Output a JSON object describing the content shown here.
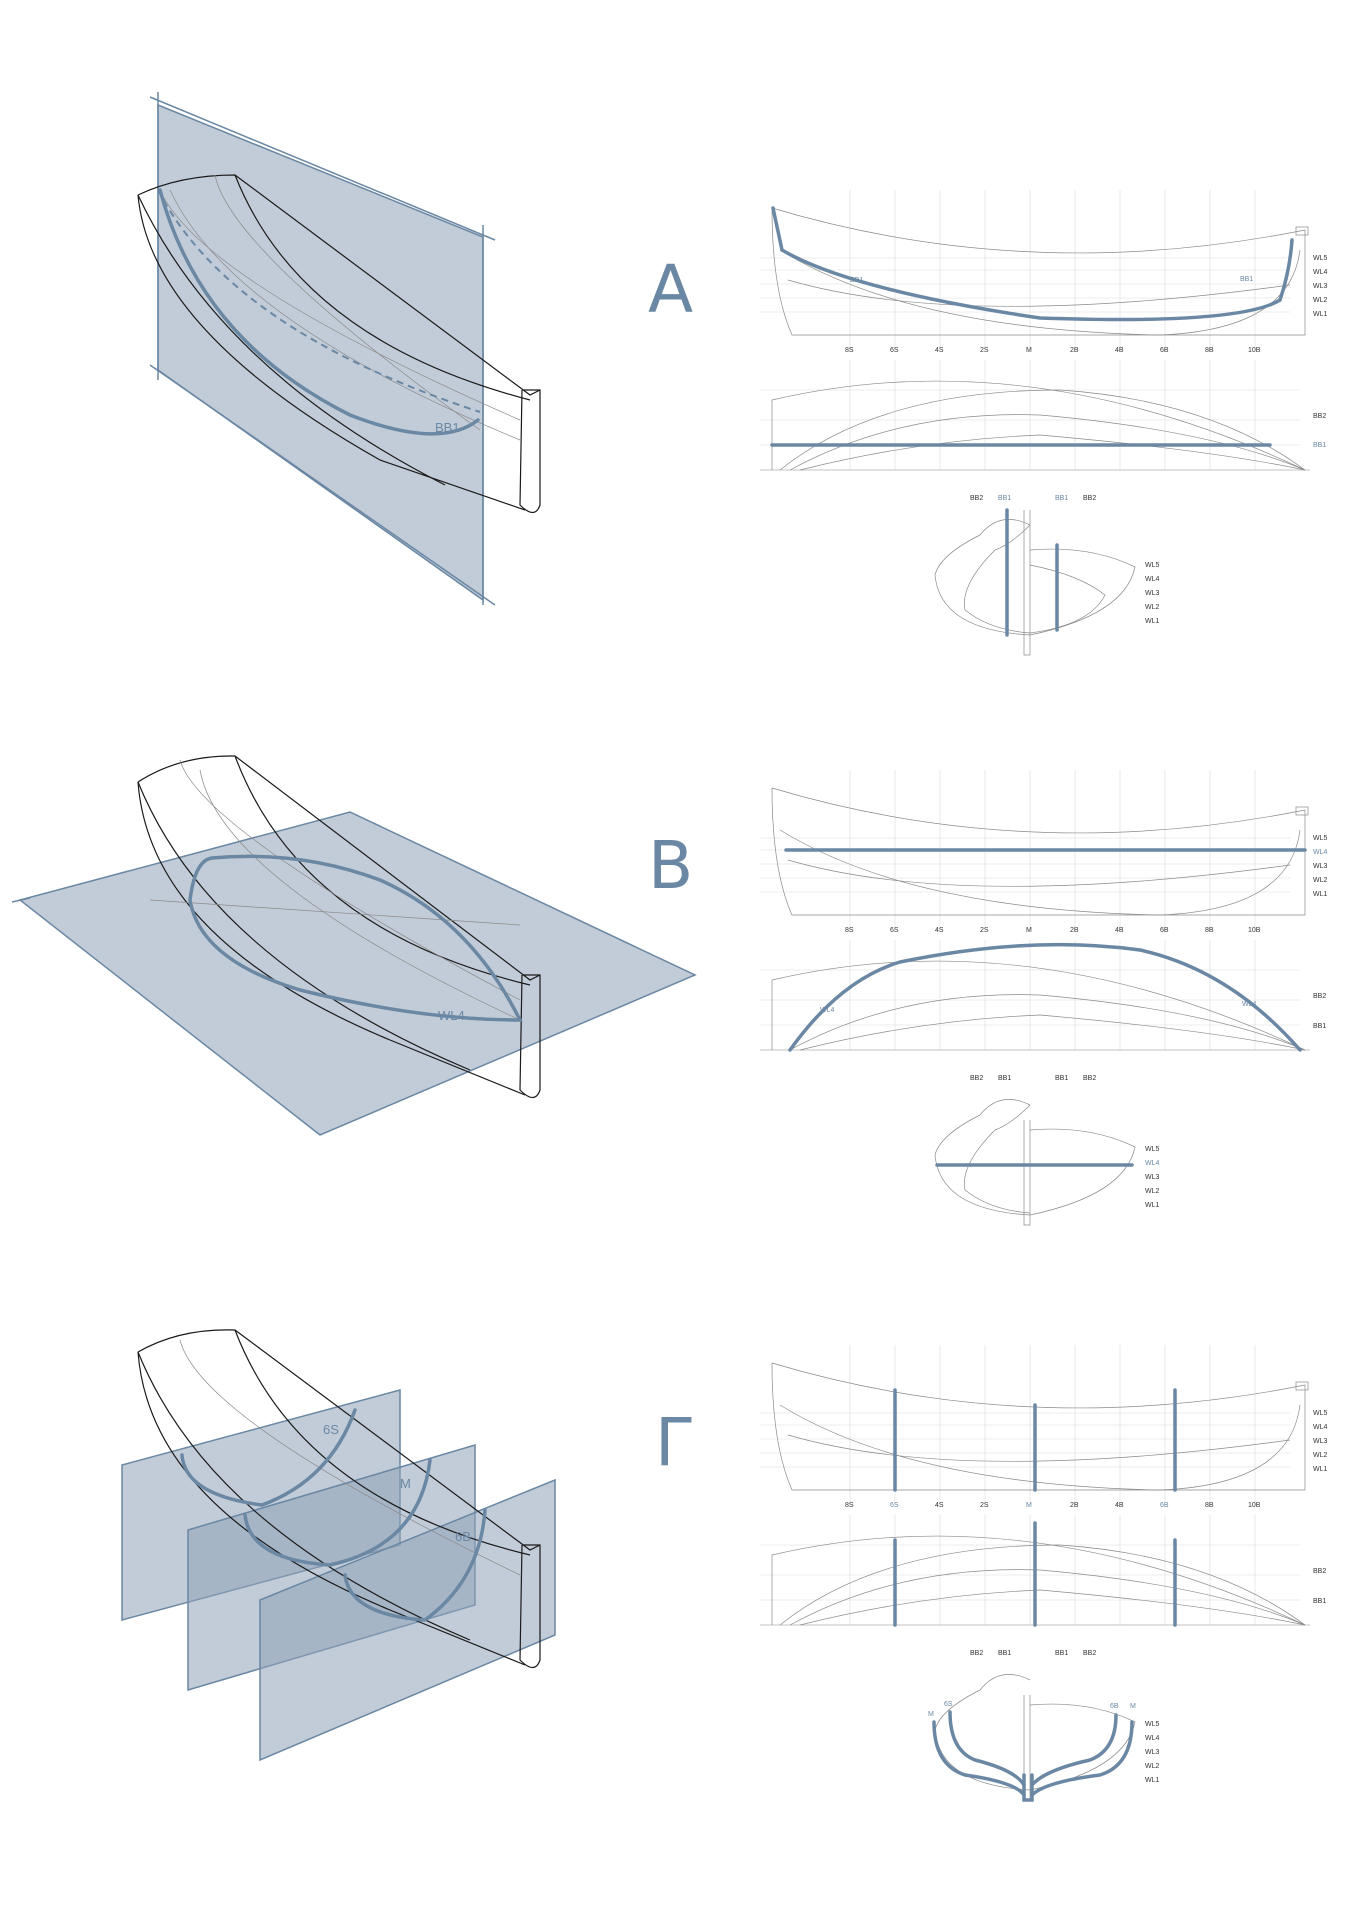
{
  "panels": [
    {
      "letter": "A",
      "iso_tag": "BB1"
    },
    {
      "letter": "B",
      "iso_tag": "WL4"
    },
    {
      "letter": "Г",
      "iso_tags": [
        "6S",
        "M",
        "6B"
      ]
    }
  ],
  "station_labels": [
    "8S",
    "6S",
    "4S",
    "2S",
    "M",
    "2B",
    "4B",
    "6B",
    "8B",
    "10B"
  ],
  "waterline_labels": [
    "WL5",
    "WL4",
    "WL3",
    "WL2",
    "WL1"
  ],
  "buttock_labels": [
    "BB2",
    "BB1"
  ],
  "body_top_labels": [
    "BB2",
    "BB1",
    "BB1",
    "BB2"
  ],
  "annotations": {
    "a_profile": [
      "BB1",
      "BB1"
    ],
    "b_plan": [
      "WL4",
      "WL4"
    ],
    "g_body": [
      "M",
      "6S",
      "6B",
      "M"
    ]
  },
  "colors": {
    "accent": "#6a87a3",
    "plane": "#8fa2b8",
    "line": "#1a1a1a"
  }
}
